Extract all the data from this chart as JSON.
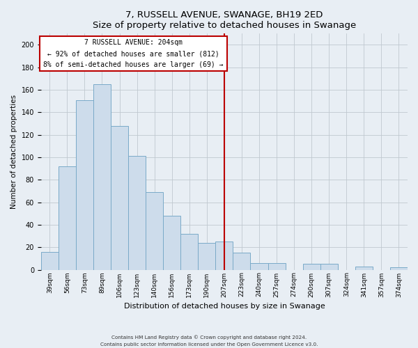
{
  "title": "7, RUSSELL AVENUE, SWANAGE, BH19 2ED",
  "subtitle": "Size of property relative to detached houses in Swanage",
  "xlabel": "Distribution of detached houses by size in Swanage",
  "ylabel": "Number of detached properties",
  "bar_labels": [
    "39sqm",
    "56sqm",
    "73sqm",
    "89sqm",
    "106sqm",
    "123sqm",
    "140sqm",
    "156sqm",
    "173sqm",
    "190sqm",
    "207sqm",
    "223sqm",
    "240sqm",
    "257sqm",
    "274sqm",
    "290sqm",
    "307sqm",
    "324sqm",
    "341sqm",
    "357sqm",
    "374sqm"
  ],
  "bar_heights": [
    16,
    92,
    151,
    165,
    128,
    101,
    69,
    48,
    32,
    24,
    25,
    15,
    6,
    6,
    0,
    5,
    5,
    0,
    3,
    0,
    2
  ],
  "bar_color": "#cddceb",
  "bar_edge_color": "#7aaac8",
  "vline_x": 10.0,
  "vline_color": "#bb0000",
  "ylim": [
    0,
    210
  ],
  "yticks": [
    0,
    20,
    40,
    60,
    80,
    100,
    120,
    140,
    160,
    180,
    200
  ],
  "annotation_title": "7 RUSSELL AVENUE: 204sqm",
  "annotation_line1": "← 92% of detached houses are smaller (812)",
  "annotation_line2": "8% of semi-detached houses are larger (69) →",
  "annotation_box_color": "#ffffff",
  "annotation_box_edge": "#bb0000",
  "footnote1": "Contains HM Land Registry data © Crown copyright and database right 2024.",
  "footnote2": "Contains public sector information licensed under the Open Government Licence v3.0.",
  "background_color": "#e8eef4",
  "plot_background": "#e8eef4",
  "grid_color": "#c0c8d0"
}
